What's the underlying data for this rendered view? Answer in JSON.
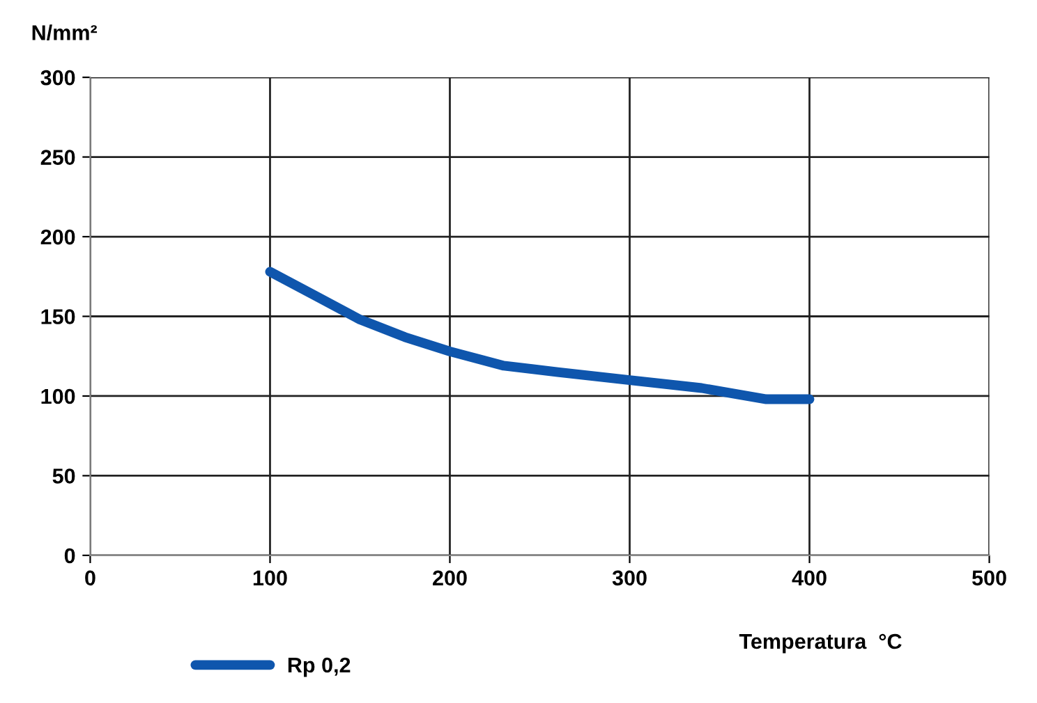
{
  "chart_data": {
    "type": "line",
    "ylabel": "N/mm²",
    "xlabel": "Temperatura  °C",
    "series": [
      {
        "name": "Rp 0,2",
        "color": "#0f56ad",
        "x": [
          100,
          125,
          150,
          175,
          200,
          230,
          260,
          300,
          340,
          376,
          400
        ],
        "values": [
          178,
          163,
          148,
          137,
          128,
          119,
          115,
          110,
          105,
          98,
          98
        ]
      }
    ],
    "xlim": [
      0,
      500
    ],
    "ylim": [
      0,
      300
    ],
    "xticks": [
      0,
      100,
      200,
      300,
      400,
      500
    ],
    "yticks": [
      0,
      50,
      100,
      150,
      200,
      250,
      300
    ],
    "grid": true,
    "legend": "bottom left",
    "marker": "none",
    "line_style": "solid"
  }
}
